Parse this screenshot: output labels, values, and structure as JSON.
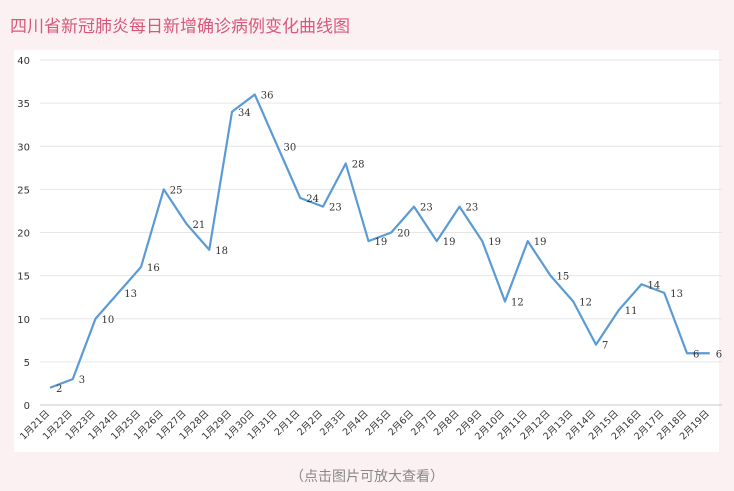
{
  "title": "四川省新冠肺炎每日新增确诊病例变化曲线图",
  "hint": "（点击图片可放大查看）",
  "colors": {
    "line": "#5b9bd5",
    "title": "#d9587a",
    "grid": "#e6e6e6",
    "label": "#333333"
  },
  "chart_data": {
    "type": "line",
    "title": "四川省新冠肺炎每日新增确诊病例变化曲线图",
    "xlabel": "",
    "ylabel": "",
    "ylim": [
      0,
      40
    ],
    "yticks": [
      0,
      5,
      10,
      15,
      20,
      25,
      30,
      35,
      40
    ],
    "grid": true,
    "categories": [
      "1月21日",
      "1月22日",
      "1月23日",
      "1月24日",
      "1月25日",
      "1月26日",
      "1月27日",
      "1月28日",
      "1月29日",
      "1月30日",
      "1月31日",
      "2月1日",
      "2月2日",
      "2月3日",
      "2月4日",
      "2月5日",
      "2月6日",
      "2月7日",
      "2月8日",
      "2月9日",
      "2月10日",
      "2月11日",
      "2月12日",
      "2月13日",
      "2月14日",
      "2月15日",
      "2月16日",
      "2月17日",
      "2月18日",
      "2月19日"
    ],
    "series": [
      {
        "values": [
          2,
          3,
          10,
          13,
          16,
          25,
          21,
          18,
          34,
          36,
          30,
          24,
          23,
          28,
          19,
          20,
          23,
          19,
          23,
          19,
          12,
          19,
          15,
          12,
          7,
          11,
          14,
          13,
          6,
          6
        ]
      }
    ]
  }
}
